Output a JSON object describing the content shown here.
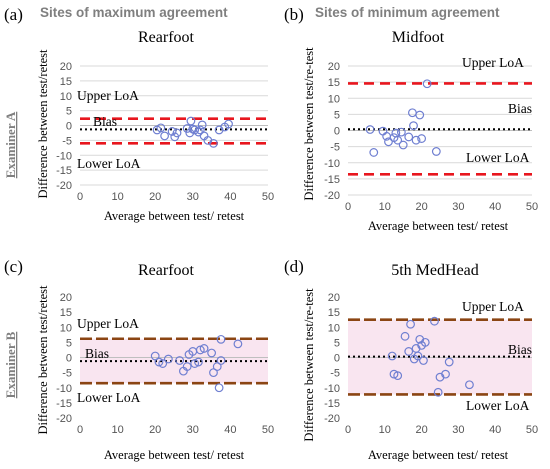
{
  "headers": {
    "left": "Sites of maximum agreement",
    "right": "Sites of minimum agreement"
  },
  "examiners": {
    "a": "Examiner A",
    "b": "Examiner B"
  },
  "colors": {
    "red_loa": "#e8161e",
    "brown_loa": "#8b4513",
    "bias": "#000000",
    "marker": "#6f7fd1",
    "grid": "#d9d9d9",
    "band": "#f4d0e4"
  },
  "chart_data": [
    {
      "panel_label": "(a)",
      "title": "Rearfoot",
      "type": "scatter",
      "xlabel": "Average between test/ retest",
      "ylabel": "Difference between test/retest",
      "xlim": [
        0,
        50
      ],
      "ylim": [
        -20,
        20
      ],
      "xticks": [
        0,
        10,
        20,
        30,
        40,
        50
      ],
      "yticks": [
        -20,
        -15,
        -10,
        -5,
        0,
        5,
        10,
        15,
        20
      ],
      "grid": true,
      "loa_color": "red",
      "band": false,
      "bias": -1.3,
      "upper_loa": 2.3,
      "lower_loa": -6.0,
      "labels": {
        "upper": "Upper LoA",
        "bias": "Bias",
        "lower": "Lower LoA"
      },
      "points": [
        [
          20.5,
          -1.5
        ],
        [
          21.5,
          -0.8
        ],
        [
          22.5,
          -3.5
        ],
        [
          24.5,
          -2.0
        ],
        [
          25.2,
          -3.8
        ],
        [
          25.8,
          -2.5
        ],
        [
          28.5,
          -1.0
        ],
        [
          29.2,
          -2.5
        ],
        [
          29.5,
          1.5
        ],
        [
          30.0,
          -1.2
        ],
        [
          30.5,
          -1.5
        ],
        [
          31.5,
          -2.2
        ],
        [
          32.0,
          -1.5
        ],
        [
          32.5,
          0.2
        ],
        [
          33.0,
          -3.5
        ],
        [
          34.0,
          -5.0
        ],
        [
          35.5,
          -6.0
        ],
        [
          37.0,
          -1.5
        ],
        [
          38.5,
          -0.5
        ],
        [
          39.5,
          0.5
        ]
      ]
    },
    {
      "panel_label": "(b)",
      "title": "Midfoot",
      "type": "scatter",
      "xlabel": "Average between test/ retest",
      "ylabel": "Difference between test/re-test",
      "xlim": [
        0,
        50
      ],
      "ylim": [
        -20,
        20
      ],
      "xticks": [
        0,
        10,
        20,
        30,
        40,
        50
      ],
      "yticks": [
        -20,
        -15,
        -10,
        -5,
        0,
        5,
        10,
        15,
        20
      ],
      "grid": true,
      "loa_color": "red",
      "band": false,
      "bias": 0.4,
      "upper_loa": 14.6,
      "lower_loa": -13.6,
      "labels": {
        "upper": "Upper LoA",
        "bias": "Bias",
        "lower": "Lower LoA"
      },
      "points": [
        [
          6.0,
          0.3
        ],
        [
          7.0,
          -6.8
        ],
        [
          9.5,
          -0.2
        ],
        [
          10.5,
          -1.8
        ],
        [
          11.0,
          -3.5
        ],
        [
          12.5,
          -2.2
        ],
        [
          13.0,
          -0.8
        ],
        [
          13.5,
          -3.0
        ],
        [
          14.5,
          -0.5
        ],
        [
          15.0,
          -4.5
        ],
        [
          16.5,
          -2.0
        ],
        [
          17.5,
          5.5
        ],
        [
          17.8,
          1.5
        ],
        [
          18.5,
          -3.0
        ],
        [
          19.5,
          4.8
        ],
        [
          20.0,
          -2.5
        ],
        [
          21.5,
          14.5
        ],
        [
          24.0,
          -6.5
        ]
      ]
    },
    {
      "panel_label": "(c)",
      "title": "Rearfoot",
      "type": "scatter",
      "xlabel": "Average between test/ retest",
      "ylabel": "Difference between test/retest",
      "xlim": [
        0,
        50
      ],
      "ylim": [
        -20,
        20
      ],
      "xticks": [
        0,
        10,
        20,
        30,
        40,
        50
      ],
      "yticks": [
        -20,
        -15,
        -10,
        -5,
        0,
        5,
        10,
        15,
        20
      ],
      "grid": false,
      "loa_color": "brown",
      "band": true,
      "bias": -1.2,
      "upper_loa": 6.2,
      "lower_loa": -8.5,
      "labels": {
        "upper": "Upper LoA",
        "bias": "Bias",
        "lower": "Lower LoA"
      },
      "points": [
        [
          20.0,
          0.5
        ],
        [
          21.0,
          -1.5
        ],
        [
          22.0,
          -2.0
        ],
        [
          23.5,
          -0.5
        ],
        [
          26.5,
          -1.0
        ],
        [
          27.5,
          -4.5
        ],
        [
          28.5,
          -3.0
        ],
        [
          29.0,
          1.0
        ],
        [
          30.0,
          2.0
        ],
        [
          30.5,
          -2.0
        ],
        [
          31.5,
          -1.5
        ],
        [
          32.0,
          2.5
        ],
        [
          33.0,
          3.0
        ],
        [
          35.0,
          1.5
        ],
        [
          35.5,
          -5.0
        ],
        [
          36.5,
          -3.0
        ],
        [
          37.0,
          -10.0
        ],
        [
          37.5,
          6.0
        ],
        [
          37.5,
          -1.0
        ],
        [
          42.0,
          4.5
        ]
      ]
    },
    {
      "panel_label": "(d)",
      "title": "5th MedHead",
      "type": "scatter",
      "xlabel": "Average between test/ retest",
      "ylabel": "Difference between test/re-test",
      "xlim": [
        0,
        50
      ],
      "ylim": [
        -20,
        20
      ],
      "xticks": [
        0,
        10,
        20,
        30,
        40,
        50
      ],
      "yticks": [
        -20,
        -15,
        -10,
        -5,
        0,
        5,
        10,
        15,
        20
      ],
      "grid": false,
      "loa_color": "brown",
      "band": true,
      "bias": 0.3,
      "upper_loa": 12.5,
      "lower_loa": -12.2,
      "labels": {
        "upper": "Upper LoA",
        "bias": "Bias",
        "lower": "Lower LoA"
      },
      "points": [
        [
          12.0,
          0.5
        ],
        [
          12.5,
          -5.5
        ],
        [
          13.5,
          -6.0
        ],
        [
          15.5,
          7.0
        ],
        [
          16.5,
          2.0
        ],
        [
          17.0,
          11.0
        ],
        [
          18.0,
          -0.5
        ],
        [
          18.5,
          3.0
        ],
        [
          19.0,
          0.5
        ],
        [
          19.5,
          6.0
        ],
        [
          20.0,
          4.0
        ],
        [
          20.5,
          -1.0
        ],
        [
          21.0,
          5.0
        ],
        [
          23.5,
          12.0
        ],
        [
          24.5,
          -11.5
        ],
        [
          25.0,
          -6.5
        ],
        [
          26.5,
          -5.5
        ],
        [
          27.5,
          -1.5
        ],
        [
          33.0,
          -9.0
        ]
      ]
    }
  ]
}
